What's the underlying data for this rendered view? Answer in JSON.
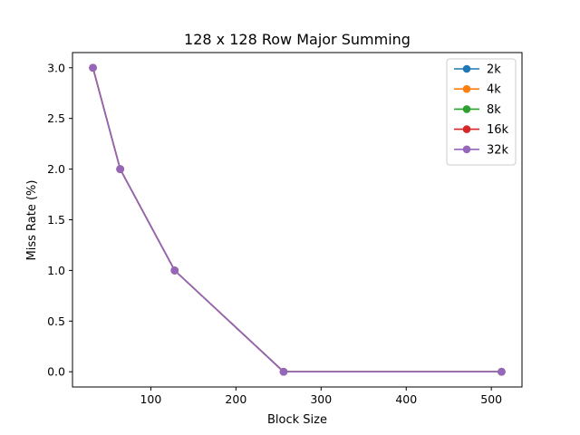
{
  "chart_data": {
    "type": "line",
    "title": "128 x 128 Row Major Summing",
    "xlabel": "Block Size",
    "ylabel": "Miss Rate (%)",
    "x": [
      32,
      64,
      128,
      256,
      512
    ],
    "xlim": [
      8,
      536
    ],
    "ylim": [
      -0.15,
      3.15
    ],
    "xticks": [
      100,
      200,
      300,
      400,
      500
    ],
    "yticks": [
      0.0,
      0.5,
      1.0,
      1.5,
      2.0,
      2.5,
      3.0
    ],
    "xtick_labels": [
      "100",
      "200",
      "300",
      "400",
      "500"
    ],
    "ytick_labels": [
      "0.0",
      "0.5",
      "1.0",
      "1.5",
      "2.0",
      "2.5",
      "3.0"
    ],
    "grid": false,
    "legend_position": "top-right",
    "series": [
      {
        "name": "2k",
        "values": [
          3.0,
          2.0,
          1.0,
          0.0,
          0.0
        ],
        "color": "#1f77b4"
      },
      {
        "name": "4k",
        "values": [
          3.0,
          2.0,
          1.0,
          0.0,
          0.0
        ],
        "color": "#ff7f0e"
      },
      {
        "name": "8k",
        "values": [
          3.0,
          2.0,
          1.0,
          0.0,
          0.0
        ],
        "color": "#2ca02c"
      },
      {
        "name": "16k",
        "values": [
          3.0,
          2.0,
          1.0,
          0.0,
          0.0
        ],
        "color": "#d62728"
      },
      {
        "name": "32k",
        "values": [
          3.0,
          2.0,
          1.0,
          0.0,
          0.0
        ],
        "color": "#9467bd"
      }
    ]
  }
}
